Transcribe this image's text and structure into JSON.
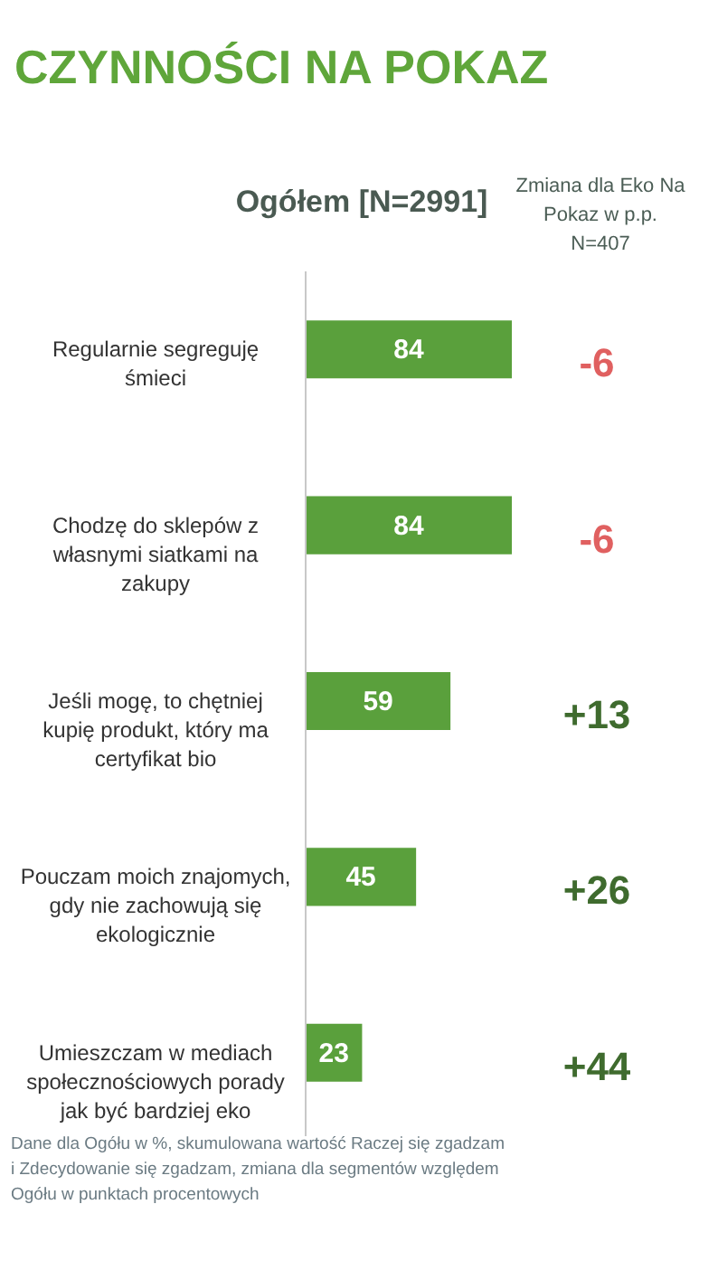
{
  "chart_data": {
    "type": "bar",
    "orientation": "horizontal",
    "title": "CZYNNOŚCI NA POKAZ",
    "subtitle": "Ogółem [N=2991]",
    "categories": [
      "Regularnie segreguję śmieci",
      "Chodzę do sklepów z własnymi siatkami na zakupy",
      "Jeśli mogę,  to chętniej kupię produkt, który ma certyfikat bio",
      "Pouczam moich znajomych, gdy nie zachowują się ekologicznie",
      "Umieszczam w mediach społecznościowych porady jak być bardziej eko"
    ],
    "values": [
      84,
      84,
      59,
      45,
      23
    ],
    "color": "#5aa03c",
    "data_labels": true,
    "annotations": [
      "Zmiana dla Eko Na Pokaz w p.p. N=407",
      "Dane dla Ogółu w %, skumulowana wartość  Raczej się zgadzam  i Zdecydowanie się zgadzam, zmiana dla segmentów względem Ogółu w punktach procentowych",
      "-6",
      "-6",
      "+13",
      "+26",
      "+44"
    ]
  }
}
